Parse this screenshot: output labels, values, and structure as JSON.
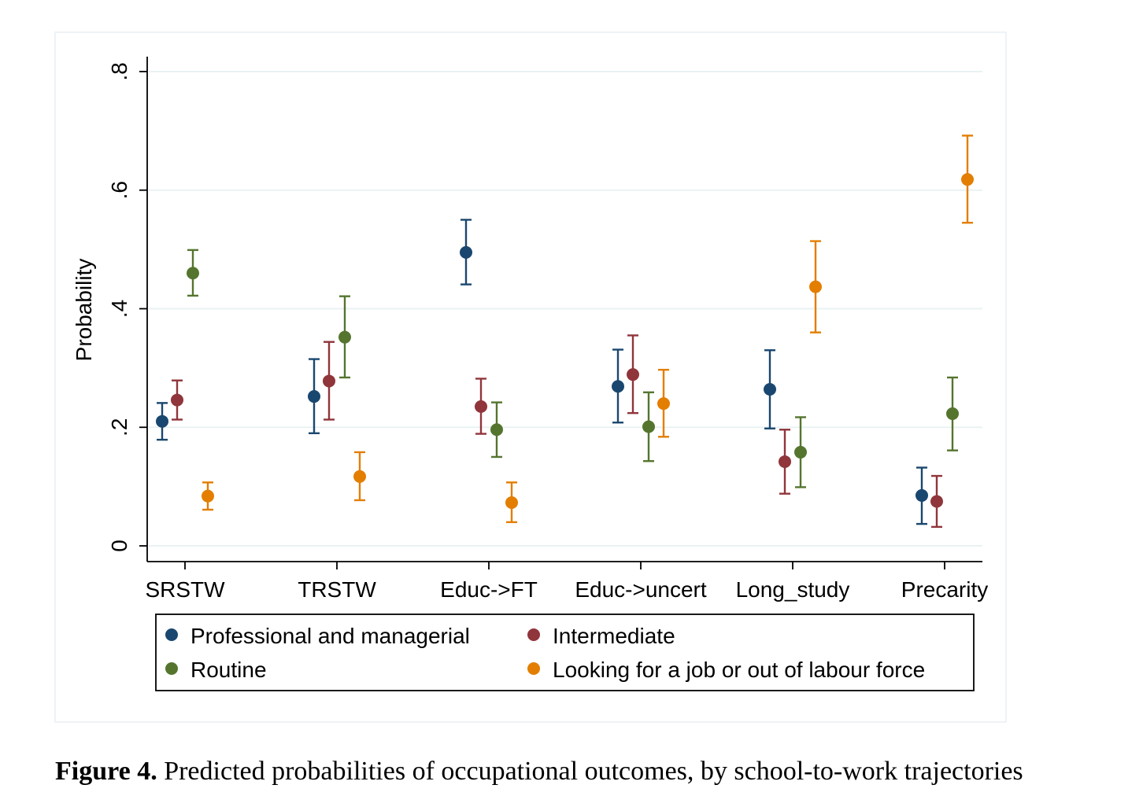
{
  "caption": {
    "label": "Figure 4.",
    "text": " Predicted probabilities of occupational outcomes, by school-to-work trajectories"
  },
  "colors": {
    "professional": "#1a476f",
    "intermediate": "#90353b",
    "routine": "#55752f",
    "looking": "#e37e00",
    "grid": "#eaf2f3",
    "frame": "#eef3f6"
  },
  "chart_data": {
    "type": "scatter",
    "ylabel": "Probability",
    "ylim": [
      0,
      0.8
    ],
    "yticks": [
      0,
      0.2,
      0.4,
      0.6,
      0.8
    ],
    "ytick_labels": [
      "0",
      ".2",
      ".4",
      ".6",
      ".8"
    ],
    "grid": true,
    "legend_position": "bottom",
    "categories": [
      "SRSTW",
      "TRSTW",
      "Educ->FT",
      "Educ->uncert",
      "Long_study",
      "Precarity"
    ],
    "series": [
      {
        "name": "Professional and managerial",
        "color": "#1a476f",
        "values": [
          0.21,
          0.252,
          0.495,
          0.269,
          0.264,
          0.085
        ],
        "ci_low": [
          0.179,
          0.19,
          0.441,
          0.208,
          0.198,
          0.037
        ],
        "ci_high": [
          0.241,
          0.315,
          0.55,
          0.331,
          0.33,
          0.132
        ]
      },
      {
        "name": "Intermediate",
        "color": "#90353b",
        "values": [
          0.246,
          0.278,
          0.235,
          0.289,
          0.142,
          0.075
        ],
        "ci_low": [
          0.213,
          0.213,
          0.189,
          0.224,
          0.088,
          0.032
        ],
        "ci_high": [
          0.279,
          0.344,
          0.282,
          0.355,
          0.196,
          0.118
        ]
      },
      {
        "name": "Routine",
        "color": "#55752f",
        "values": [
          0.46,
          0.352,
          0.196,
          0.201,
          0.158,
          0.223
        ],
        "ci_low": [
          0.422,
          0.284,
          0.15,
          0.143,
          0.099,
          0.161
        ],
        "ci_high": [
          0.499,
          0.421,
          0.242,
          0.259,
          0.217,
          0.284
        ]
      },
      {
        "name": "Looking for a job or out of labour force",
        "color": "#e37e00",
        "values": [
          0.084,
          0.117,
          0.073,
          0.24,
          0.437,
          0.618
        ],
        "ci_low": [
          0.061,
          0.077,
          0.04,
          0.184,
          0.36,
          0.545
        ],
        "ci_high": [
          0.107,
          0.158,
          0.107,
          0.297,
          0.514,
          0.692
        ]
      }
    ]
  }
}
